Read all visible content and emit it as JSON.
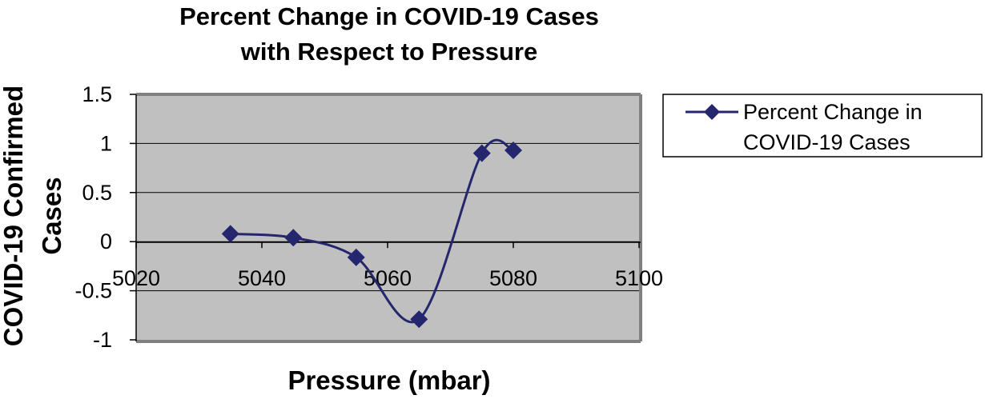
{
  "chart_data": {
    "type": "line",
    "title_lines": [
      "Percent Change in COVID-19 Cases",
      "with Respect to Pressure"
    ],
    "xlabel": "Pressure (mbar)",
    "ylabel_lines": [
      "COVID-19 Confirmed",
      "Cases"
    ],
    "xlim": [
      5020,
      5100
    ],
    "ylim": [
      -1,
      1.5
    ],
    "x_ticks": [
      "5020",
      "5040",
      "5060",
      "5080",
      "5100"
    ],
    "y_ticks": [
      "1.5",
      "1",
      "0.5",
      "0",
      "-0.5",
      "-1"
    ],
    "grid": true,
    "legend_position": "right",
    "series": [
      {
        "name": "Percent Change in COVID-19 Cases",
        "legend_lines": [
          "Percent Change in",
          "COVID-19 Cases"
        ],
        "x": [
          5035,
          5045,
          5055,
          5065,
          5075,
          5080
        ],
        "y": [
          0.08,
          0.04,
          -0.16,
          -0.79,
          0.9,
          0.93
        ],
        "color": "#25276e",
        "marker": "diamond",
        "smooth": true
      }
    ],
    "plot_background": "#c0c0c0"
  }
}
